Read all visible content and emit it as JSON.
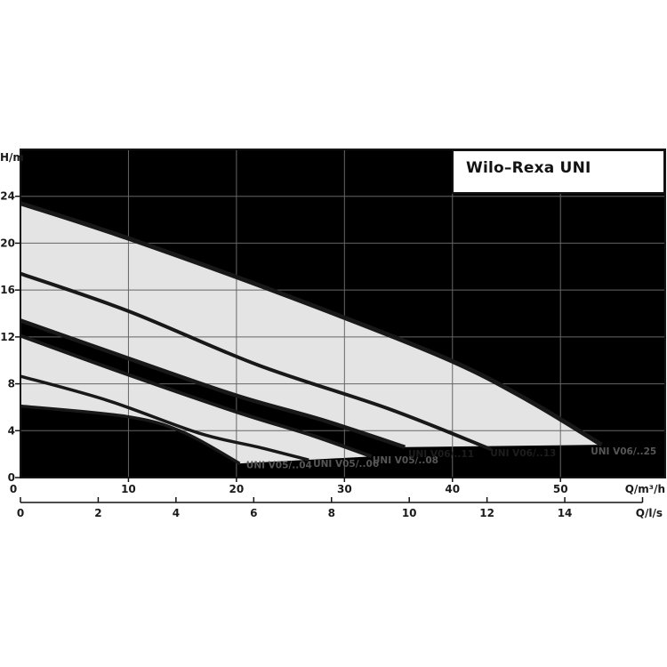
{
  "chart_data": {
    "type": "line",
    "title": "Wilo–Rexa UNI",
    "subtitle": "",
    "legend_position": "none",
    "grid": true,
    "colors": {
      "page_bg": "#ffffff",
      "plot_bg": "#000000",
      "band_fill": "#e4e4e4",
      "grid_color": "#666666",
      "curve_color": "#181818",
      "axis_color": "#141414",
      "tick_text": "#1a1a1a",
      "label_on_black": "#565656",
      "label_on_gray": "#1d1d1d"
    },
    "y_axis": {
      "label": "H/m",
      "range": [
        0,
        28
      ],
      "ticks": [
        0,
        4,
        8,
        12,
        16,
        20,
        24
      ],
      "gridlines": [
        4,
        8,
        12,
        16,
        20,
        24
      ]
    },
    "x_axis_primary": {
      "label": "Q/m³/h",
      "range": [
        0,
        59.7
      ],
      "ticks": [
        0,
        10,
        20,
        30,
        40,
        50
      ],
      "gridlines": [
        10,
        20,
        30,
        40,
        50
      ]
    },
    "x_axis_secondary": {
      "label": "Q/l/s",
      "ticks": [
        0,
        2,
        4,
        6,
        8,
        10,
        12,
        14
      ],
      "tick_marks": [
        0,
        2,
        4,
        6,
        8,
        10,
        12,
        14,
        16
      ],
      "to_primary_factor": 3.6
    },
    "series": [
      {
        "name": "UNI V06/..25",
        "width": 5,
        "points": [
          [
            0,
            23.4
          ],
          [
            10,
            20.4
          ],
          [
            25,
            15.4
          ],
          [
            39.3,
            10.2
          ],
          [
            47,
            6.6
          ],
          [
            53.8,
            2.8
          ]
        ]
      },
      {
        "name": "UNI V06/..13",
        "width": 4,
        "points": [
          [
            0,
            17.4
          ],
          [
            10,
            14.2
          ],
          [
            22,
            9.6
          ],
          [
            34,
            5.9
          ],
          [
            43.6,
            2.4
          ]
        ]
      },
      {
        "name": "UNI V06/..11",
        "width": 4.5,
        "points": [
          [
            0,
            13.4
          ],
          [
            9.9,
            10.2
          ],
          [
            20,
            7.0
          ],
          [
            28,
            4.9
          ],
          [
            35.6,
            2.6
          ]
        ]
      },
      {
        "name": "UNI V05/..08",
        "width": 4,
        "points": [
          [
            0,
            12.1
          ],
          [
            9.9,
            8.8
          ],
          [
            20,
            5.6
          ],
          [
            27,
            3.6
          ],
          [
            32.5,
            1.8
          ]
        ]
      },
      {
        "name": "UNI V05/..06",
        "width": 3.5,
        "points": [
          [
            0,
            8.65
          ],
          [
            8,
            6.6
          ],
          [
            16.5,
            3.8
          ],
          [
            22,
            2.6
          ],
          [
            26.7,
            1.5
          ]
        ]
      },
      {
        "name": "UNI V05/..04",
        "width": 3.5,
        "points": [
          [
            0,
            6.1
          ],
          [
            9.9,
            5.2
          ],
          [
            15,
            3.9
          ],
          [
            20.3,
            1.2
          ]
        ]
      }
    ],
    "bands": [
      {
        "upper": 0,
        "lower": 2
      },
      {
        "upper": 3,
        "lower": 5
      }
    ],
    "curve_labels": [
      {
        "text": "UNI V05/..04",
        "q": 20.9,
        "h": 0.78,
        "on": "black"
      },
      {
        "text": "UNI V05/..06",
        "q": 27.1,
        "h": 0.92,
        "on": "black"
      },
      {
        "text": "UNI V05/..08",
        "q": 32.6,
        "h": 1.22,
        "on": "black"
      },
      {
        "text": "UNI V06/..11",
        "q": 35.9,
        "h": 1.76,
        "on": "gray"
      },
      {
        "text": "UNI V06/..13",
        "q": 43.5,
        "h": 1.83,
        "on": "gray"
      },
      {
        "text": "UNI V06/..25",
        "q": 52.8,
        "h": 1.98,
        "on": "black"
      }
    ]
  }
}
